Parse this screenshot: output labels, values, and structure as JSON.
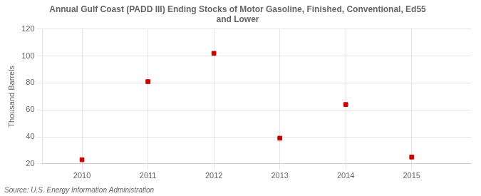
{
  "chart_data": {
    "type": "scatter",
    "title": "Annual Gulf Coast (PADD III) Ending Stocks of Motor Gasoline, Finished, Conventional, Ed55\nand Lower",
    "y_label": "Thousand Barrels",
    "source": "Source: U.S. Energy Information Administration",
    "x": [
      2010,
      2011,
      2012,
      2013,
      2014,
      2015
    ],
    "values": [
      23,
      81,
      102,
      39,
      64,
      25
    ],
    "color": "#cc0000",
    "marker": "square",
    "xlim": [
      2009.4,
      2015.9
    ],
    "xticks": [
      2010,
      2011,
      2012,
      2013,
      2014,
      2015
    ],
    "ylim": [
      20,
      120
    ],
    "yticks": [
      20,
      40,
      60,
      80,
      100,
      120
    ],
    "grid": true
  }
}
